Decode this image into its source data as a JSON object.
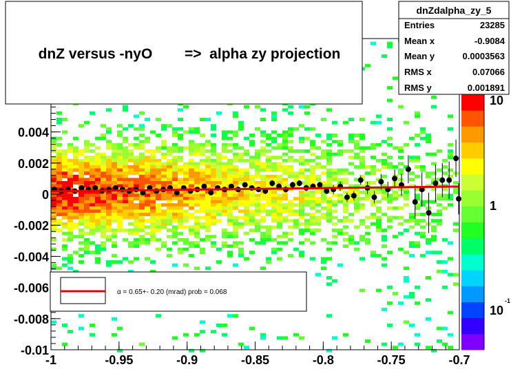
{
  "chart_data": {
    "type": "heatmap",
    "title": "dnZ versus -nyO        =>  alpha zy projection",
    "xlabel": "",
    "ylabel": "",
    "xlim": [
      -1.0,
      -0.7
    ],
    "ylim": [
      -0.01,
      0.01
    ],
    "x_ticks": [
      -1.0,
      -0.95,
      -0.9,
      -0.85,
      -0.8,
      -0.75,
      -0.7
    ],
    "x_tick_labels": [
      "-1",
      "-0.95",
      "-0.9",
      "-0.85",
      "-0.8",
      "-0.75",
      "-0.7"
    ],
    "y_ticks": [
      -0.01,
      -0.008,
      -0.006,
      -0.004,
      -0.002,
      0.0,
      0.002,
      0.004
    ],
    "y_tick_labels": [
      "-0.01",
      "-0.008",
      "-0.006",
      "-0.004",
      "-0.002",
      "0",
      "0.002",
      "0.004"
    ],
    "color_scale": {
      "log": true,
      "labels": [
        "10",
        "1",
        "10"
      ],
      "label_values": [
        10,
        1,
        0.1
      ],
      "exponent_suffix": "-1",
      "palette": [
        "#7f00ff",
        "#3300ff",
        "#0044ff",
        "#0099ff",
        "#00d4ff",
        "#00ffcc",
        "#00ff66",
        "#22ff22",
        "#66ff33",
        "#99ff33",
        "#ccff33",
        "#ffff00",
        "#ffcc00",
        "#ff9900",
        "#ff5500",
        "#ff0000"
      ]
    },
    "stats_box": {
      "name": "dnZdalpha_zy_5",
      "rows": [
        {
          "label": "Entries",
          "value": "23285"
        },
        {
          "label": "Mean x",
          "value": "-0.9084"
        },
        {
          "label": "Mean y",
          "value": "0.0003563"
        },
        {
          "label": "RMS x",
          "value": "0.07066"
        },
        {
          "label": "RMS y",
          "value": "0.001891"
        }
      ]
    },
    "legend": {
      "placement": "bottom-left",
      "text": "α =    0.65+- 0.20 (mrad) prob = 0.068"
    },
    "fit_line": {
      "color": "#e00000",
      "points": [
        [
          -1.0,
          0.00018
        ],
        [
          -0.7,
          0.00049
        ]
      ]
    },
    "profile_points": {
      "color": "#000000",
      "points": [
        [
          -0.9975,
          0.0003,
          0.0001
        ],
        [
          -0.9925,
          0.0002,
          0.0001
        ],
        [
          -0.9875,
          0.0003,
          0.0001
        ],
        [
          -0.9825,
          0.0002,
          0.0001
        ],
        [
          -0.9775,
          0.0004,
          0.0001
        ],
        [
          -0.9725,
          0.0003,
          0.0001
        ],
        [
          -0.9675,
          0.0004,
          0.0001
        ],
        [
          -0.9625,
          0.0002,
          0.0001
        ],
        [
          -0.9575,
          0.0003,
          0.0001
        ],
        [
          -0.9525,
          0.0004,
          0.0001
        ],
        [
          -0.9475,
          0.0003,
          0.0001
        ],
        [
          -0.9425,
          0.0002,
          0.0001
        ],
        [
          -0.9375,
          0.0003,
          0.0001
        ],
        [
          -0.9325,
          0.0001,
          0.0001
        ],
        [
          -0.9275,
          0.0004,
          0.0001
        ],
        [
          -0.9225,
          0.0002,
          0.0001
        ],
        [
          -0.9175,
          0.0003,
          0.0001
        ],
        [
          -0.9125,
          0.0004,
          0.0001
        ],
        [
          -0.9075,
          0.0001,
          0.0001
        ],
        [
          -0.9025,
          0.0004,
          0.0001
        ],
        [
          -0.8975,
          0.0002,
          0.0001
        ],
        [
          -0.8925,
          0.0003,
          0.0001
        ],
        [
          -0.8875,
          0.0005,
          0.0001
        ],
        [
          -0.8825,
          0.0001,
          0.0001
        ],
        [
          -0.8775,
          0.0004,
          0.0001
        ],
        [
          -0.8725,
          0.0003,
          0.0001
        ],
        [
          -0.8675,
          0.0005,
          0.0001
        ],
        [
          -0.8625,
          0.0003,
          0.0001
        ],
        [
          -0.8575,
          0.0006,
          0.0001
        ],
        [
          -0.8525,
          0.0004,
          0.0001
        ],
        [
          -0.8475,
          0.0003,
          0.0001
        ],
        [
          -0.8425,
          0.0002,
          0.0002
        ],
        [
          -0.8375,
          0.0007,
          0.0002
        ],
        [
          -0.8325,
          0.0005,
          0.0002
        ],
        [
          -0.8275,
          0.0003,
          0.0002
        ],
        [
          -0.8225,
          0.0006,
          0.0002
        ],
        [
          -0.8175,
          0.0007,
          0.0002
        ],
        [
          -0.8125,
          0.0004,
          0.0002
        ],
        [
          -0.8075,
          0.0005,
          0.0002
        ],
        [
          -0.8025,
          0.0006,
          0.0002
        ],
        [
          -0.7975,
          0.0002,
          0.0002
        ],
        [
          -0.7925,
          0.0003,
          0.0003
        ],
        [
          -0.7875,
          0.0005,
          0.0003
        ],
        [
          -0.7825,
          -0.0002,
          0.0003
        ],
        [
          -0.7775,
          -0.0001,
          0.0003
        ],
        [
          -0.7725,
          0.0009,
          0.0003
        ],
        [
          -0.7675,
          0.0004,
          0.0004
        ],
        [
          -0.7625,
          -0.0002,
          0.0004
        ],
        [
          -0.7575,
          0.0008,
          0.0005
        ],
        [
          -0.7525,
          0.0003,
          0.0005
        ],
        [
          -0.7475,
          0.001,
          0.0006
        ],
        [
          -0.7425,
          0.0006,
          0.0007
        ],
        [
          -0.7375,
          0.0016,
          0.0009
        ],
        [
          -0.7325,
          -0.0005,
          0.0011
        ],
        [
          -0.7275,
          0.0003,
          0.0011
        ],
        [
          -0.7225,
          -0.0012,
          0.0013
        ],
        [
          -0.7175,
          0.0007,
          0.0012
        ],
        [
          -0.7125,
          0.0009,
          0.0011
        ],
        [
          -0.7075,
          0.0009,
          0.0012
        ],
        [
          -0.7025,
          0.0023,
          0.0012
        ],
        [
          -0.7005,
          -0.0003,
          0.001
        ]
      ]
    }
  }
}
